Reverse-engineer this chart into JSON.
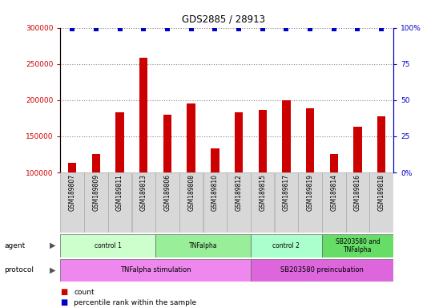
{
  "title": "GDS2885 / 28913",
  "samples": [
    "GSM189807",
    "GSM189809",
    "GSM189811",
    "GSM189813",
    "GSM189806",
    "GSM189808",
    "GSM189810",
    "GSM189812",
    "GSM189815",
    "GSM189817",
    "GSM189819",
    "GSM189814",
    "GSM189816",
    "GSM189818"
  ],
  "counts": [
    113000,
    125000,
    183000,
    258000,
    180000,
    195000,
    133000,
    183000,
    187000,
    200000,
    189000,
    125000,
    163000,
    178000
  ],
  "bar_color": "#cc0000",
  "dot_color": "#0000cc",
  "ylim_left": [
    100000,
    300000
  ],
  "ylim_right": [
    0,
    100
  ],
  "yticks_left": [
    100000,
    150000,
    200000,
    250000,
    300000
  ],
  "yticks_right": [
    0,
    25,
    50,
    75,
    100
  ],
  "agent_groups": [
    {
      "label": "control 1",
      "start": 0,
      "end": 4,
      "color": "#ccffcc"
    },
    {
      "label": "TNFalpha",
      "start": 4,
      "end": 8,
      "color": "#99ee99"
    },
    {
      "label": "control 2",
      "start": 8,
      "end": 11,
      "color": "#aaffcc"
    },
    {
      "label": "SB203580 and\nTNFalpha",
      "start": 11,
      "end": 14,
      "color": "#66dd66"
    }
  ],
  "protocol_groups": [
    {
      "label": "TNFalpha stimulation",
      "start": 0,
      "end": 8,
      "color": "#ee88ee"
    },
    {
      "label": "SB203580 preincubation",
      "start": 8,
      "end": 14,
      "color": "#dd66dd"
    }
  ],
  "background_color": "#ffffff",
  "grid_color": "#888888",
  "sample_box_color": "#d8d8d8",
  "left_axis_color": "#cc0000",
  "right_axis_color": "#0000cc"
}
